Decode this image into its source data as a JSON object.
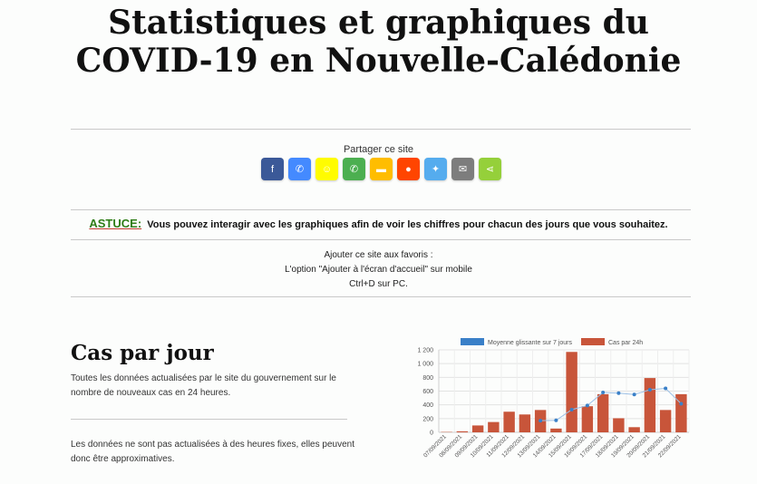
{
  "header": {
    "title_line1": "Statistiques et graphiques du",
    "title_line2": "COVID-19 en Nouvelle-Calédonie"
  },
  "share": {
    "label": "Partager ce site",
    "buttons": [
      {
        "name": "facebook-share-button",
        "glyph": "f",
        "color": "#3b5998"
      },
      {
        "name": "messenger-share-button",
        "glyph": "✆",
        "color": "#448aff"
      },
      {
        "name": "snapchat-share-button",
        "glyph": "☺",
        "color": "#fffc00"
      },
      {
        "name": "whatsapp-share-button",
        "glyph": "✆",
        "color": "#4caf50"
      },
      {
        "name": "sms-share-button",
        "glyph": "▬",
        "color": "#ffbd00"
      },
      {
        "name": "reddit-share-button",
        "glyph": "●",
        "color": "#ff4500"
      },
      {
        "name": "twitter-share-button",
        "glyph": "✦",
        "color": "#55acee"
      },
      {
        "name": "email-share-button",
        "glyph": "✉",
        "color": "#7d7d7d"
      },
      {
        "name": "sharethis-share-button",
        "glyph": "⋖",
        "color": "#95d03a"
      }
    ]
  },
  "tip": {
    "tag": "ASTUCE:",
    "text": "Vous pouvez interagir avec les graphiques afin de voir les chiffres pour chacun des jours que vous souhaitez."
  },
  "favorites": {
    "line1": "Ajouter ce site aux favoris :",
    "line2": "L'option \"Ajouter à l'écran d'accueil\" sur mobile",
    "line3": "Ctrl+D sur PC."
  },
  "cases_section": {
    "title": "Cas par jour",
    "desc1": "Toutes les données actualisées par le site du gouvernement sur le nombre de nouveaux cas en 24 heures.",
    "desc2": "Les données ne sont pas actualisées à des heures fixes, elles peuvent donc être approximatives."
  },
  "colors": {
    "bar": "#c8553a",
    "line": "#3a80c8"
  },
  "chart_data": {
    "type": "bar",
    "categories": [
      "07/09/2021",
      "08/09/2021",
      "09/09/2021",
      "10/09/2021",
      "11/09/2021",
      "12/09/2021",
      "13/09/2021",
      "14/09/2021",
      "15/09/2021",
      "16/09/2021",
      "17/09/2021",
      "18/09/2021",
      "19/09/2021",
      "20/09/2021",
      "21/09/2021",
      "22/09/2021"
    ],
    "series": [
      {
        "name": "Moyenne glissante sur 7 jours",
        "type": "line",
        "values": [
          null,
          null,
          null,
          null,
          null,
          null,
          170,
          175,
          330,
          390,
          580,
          570,
          550,
          620,
          640,
          415
        ]
      },
      {
        "name": "Cas par 24h",
        "type": "bar",
        "values": [
          5,
          15,
          100,
          150,
          300,
          260,
          325,
          55,
          1170,
          380,
          555,
          205,
          75,
          790,
          325,
          555
        ]
      }
    ],
    "ylim": [
      0,
      1200
    ],
    "yticks": [
      0,
      200,
      400,
      600,
      800,
      1000,
      1200
    ],
    "ytick_labels": [
      "0",
      "200",
      "400",
      "600",
      "800",
      "1 000",
      "1 200"
    ],
    "grid": true,
    "legend_position": "top"
  }
}
